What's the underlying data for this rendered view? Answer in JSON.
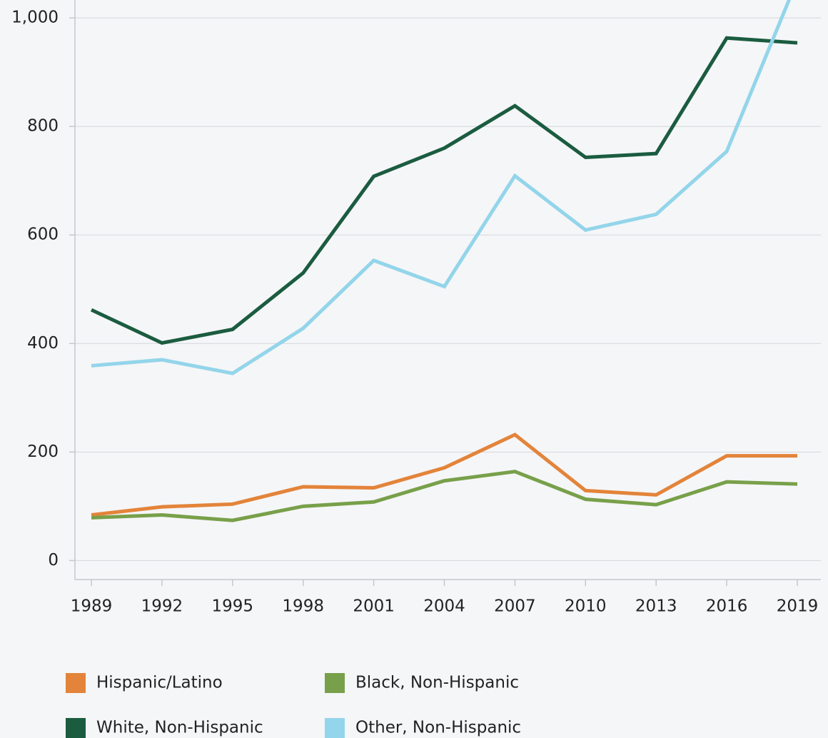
{
  "chart_data": {
    "type": "line",
    "categories": [
      "1989",
      "1992",
      "1995",
      "1998",
      "2001",
      "2004",
      "2007",
      "2010",
      "2013",
      "2016",
      "2019"
    ],
    "series": [
      {
        "name": "Hispanic/Latino",
        "color": "#e3843a",
        "values": [
          84,
          99,
          104,
          136,
          134,
          171,
          232,
          129,
          121,
          193,
          193
        ]
      },
      {
        "name": "Black, Non-Hispanic",
        "color": "#78a04a",
        "values": [
          79,
          84,
          74,
          100,
          108,
          147,
          164,
          113,
          103,
          145,
          141
        ]
      },
      {
        "name": "White, Non-Hispanic",
        "color": "#1b5c40",
        "values": [
          462,
          401,
          426,
          530,
          708,
          760,
          838,
          743,
          750,
          963,
          954
        ]
      },
      {
        "name": "Other, Non-Hispanic",
        "color": "#93d5ea",
        "values": [
          359,
          370,
          345,
          428,
          553,
          505,
          709,
          609,
          638,
          754,
          1070
        ]
      }
    ],
    "ylim": [
      -35,
      1033
    ],
    "yticks": [
      0,
      200,
      400,
      600,
      800,
      {
        "value": 1000,
        "label": "1,000"
      }
    ],
    "grid": true
  }
}
